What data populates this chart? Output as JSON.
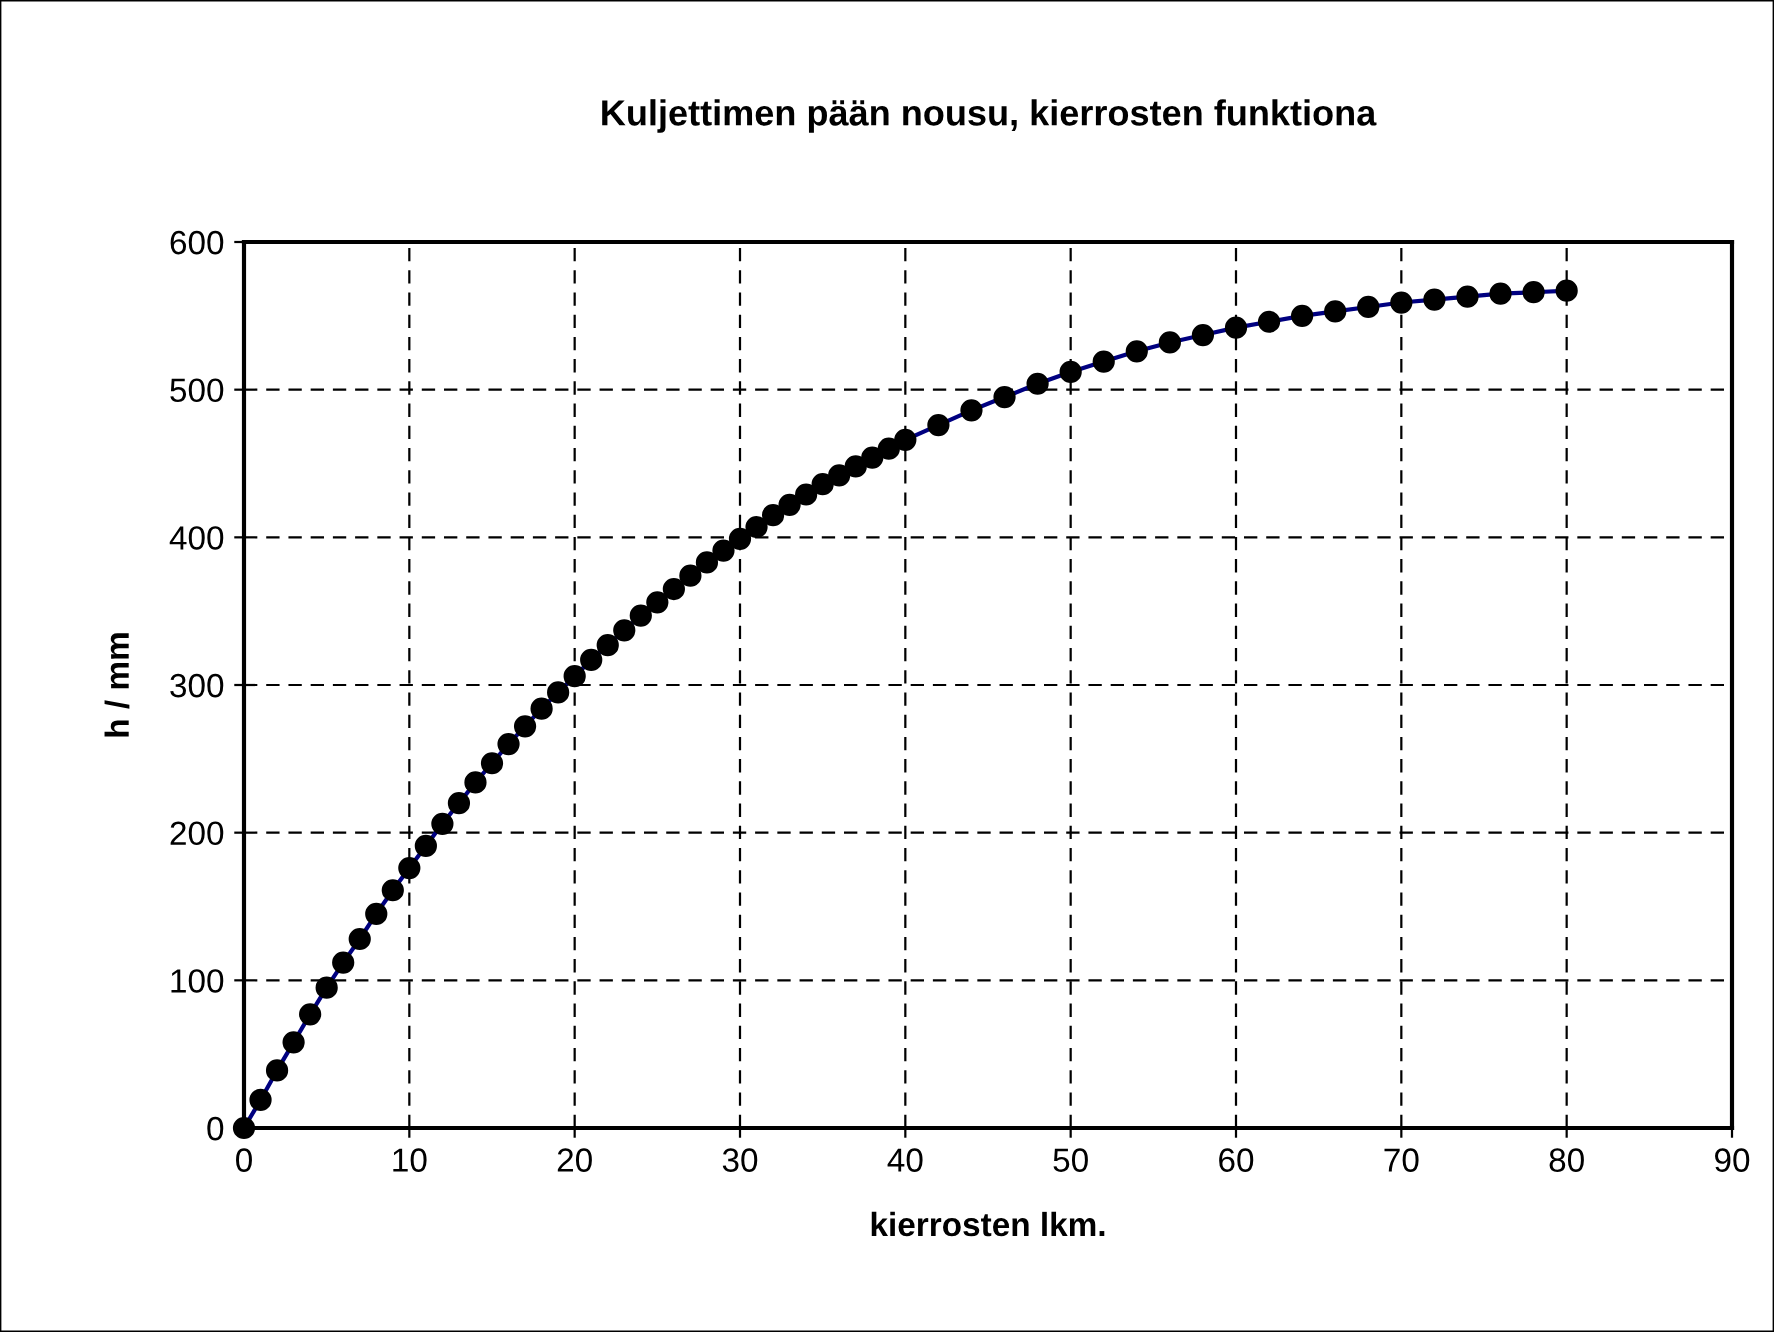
{
  "chart_data": {
    "type": "line",
    "title": "Kuljettimen pään nousu, kierrosten funktiona",
    "xlabel": "kierrosten lkm.",
    "ylabel": "h / mm",
    "series": [
      {
        "color": "#000080",
        "x": [
          0,
          1,
          2,
          3,
          4,
          5,
          6,
          7,
          8,
          9,
          10,
          11,
          12,
          13,
          14,
          15,
          16,
          17,
          18,
          19,
          20,
          21,
          22,
          23,
          24,
          25,
          26,
          27,
          28,
          29,
          30,
          31,
          32,
          33,
          34,
          35,
          36,
          37,
          38,
          39,
          40,
          42,
          44,
          46,
          48,
          50,
          52,
          54,
          56,
          58,
          60,
          62,
          64,
          66,
          68,
          70,
          72,
          74,
          76,
          78,
          80
        ],
        "values": [
          0,
          19,
          39,
          58,
          77,
          95,
          112,
          128,
          145,
          161,
          176,
          191,
          206,
          220,
          234,
          247,
          260,
          272,
          284,
          295,
          306,
          317,
          327,
          337,
          347,
          356,
          365,
          374,
          383,
          391,
          399,
          407,
          415,
          422,
          429,
          436,
          442,
          448,
          454,
          460,
          466,
          476,
          486,
          495,
          504,
          512,
          519,
          526,
          532,
          537,
          542,
          546,
          550,
          553,
          556,
          559,
          561,
          563,
          565,
          566,
          567
        ]
      }
    ],
    "xlim": [
      0,
      90
    ],
    "xticks": [
      0,
      10,
      20,
      30,
      40,
      50,
      60,
      70,
      80,
      90
    ],
    "ylim": [
      0,
      600
    ],
    "yticks": [
      0,
      100,
      200,
      300,
      400,
      500,
      600
    ],
    "grid": true,
    "marker": "circle",
    "line_style": "solid",
    "legend": false
  }
}
